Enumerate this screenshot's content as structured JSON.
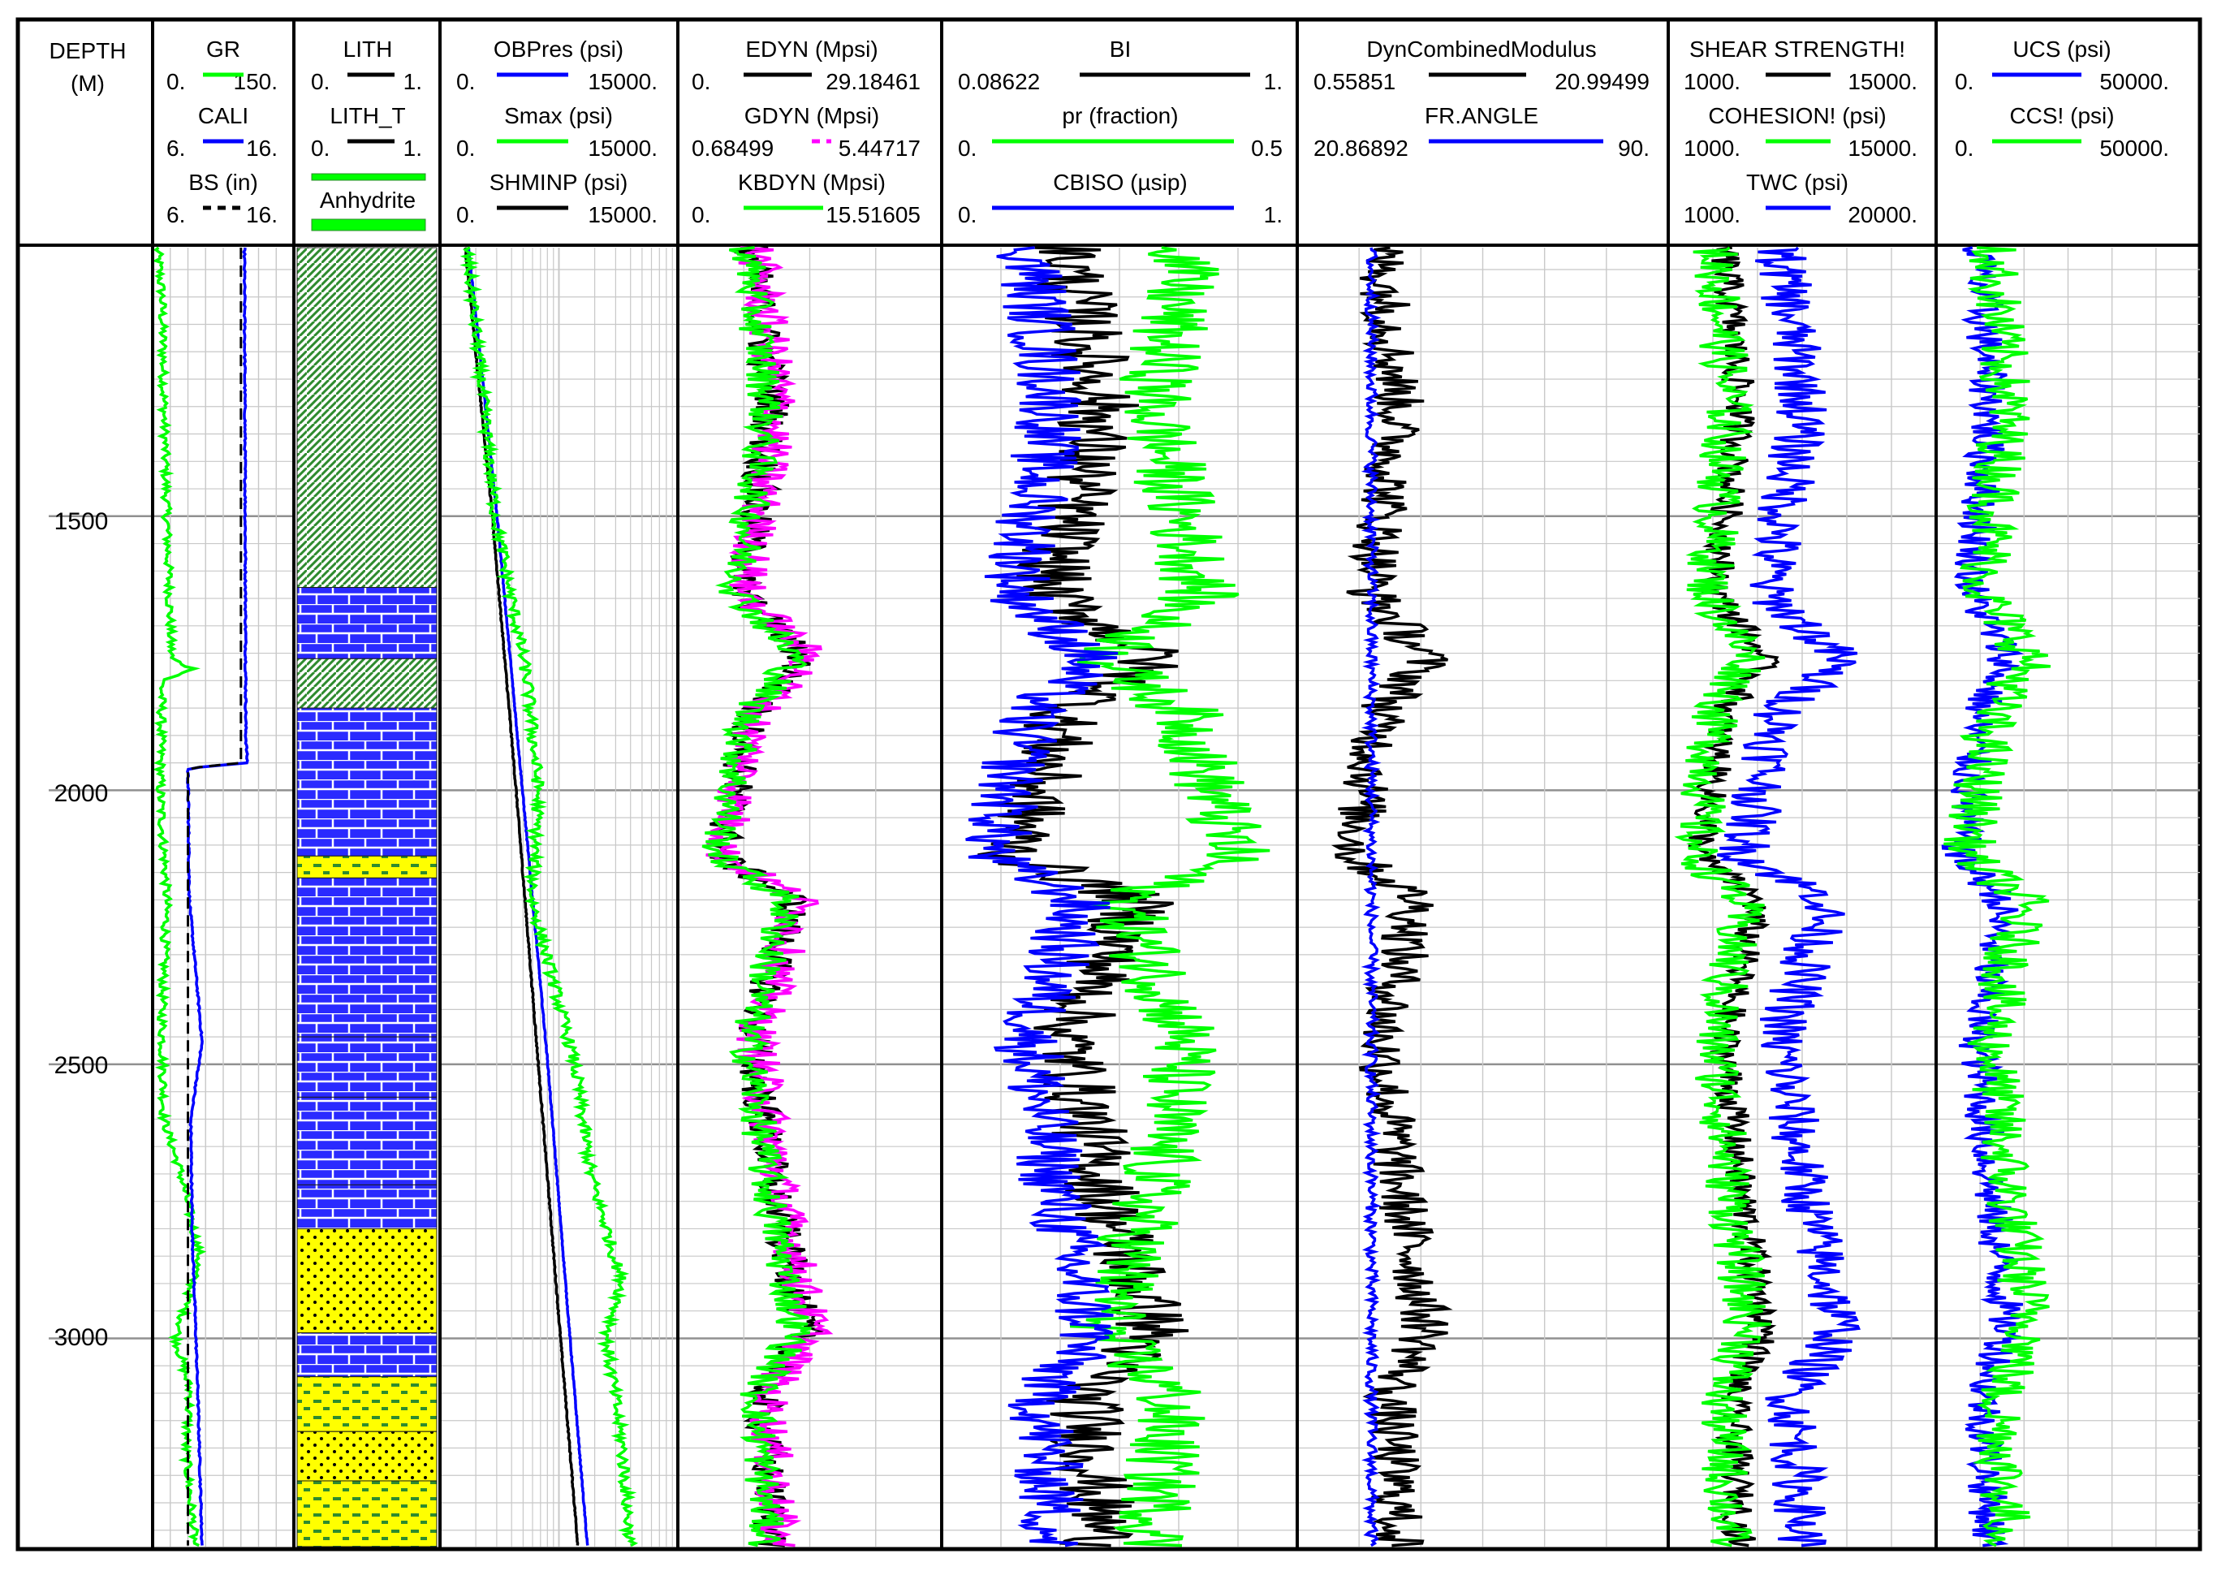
{
  "colors": {
    "green": "#00ff00",
    "blue": "#0000ff",
    "black": "#000000",
    "magenta": "#ff00ff",
    "grid": "#c8c8c8",
    "lith_green": "#2e8b2e",
    "lith_blue": "#2a2aff",
    "lith_yellow": "#ffff00"
  },
  "depth": {
    "title_line1": "DEPTH",
    "title_line2": "(M)",
    "top": 1010,
    "bottom": 3380,
    "labels": [
      "1500",
      "2000",
      "2500",
      "3000"
    ],
    "label_values": [
      1500,
      2000,
      2500,
      3000
    ]
  },
  "chart_data": {
    "type": "line",
    "title": "",
    "y_axis": "DEPTH (M)",
    "ylim": [
      3380,
      1010
    ],
    "tracks": [
      {
        "id": "gr_track",
        "curves": [
          {
            "name": "GR",
            "min": "0.",
            "max": "150.",
            "color": "green",
            "style": "solid"
          },
          {
            "name": "CALI",
            "min": "6.",
            "max": "16.",
            "color": "blue",
            "style": "solid"
          },
          {
            "name": "BS (in)",
            "min": "6.",
            "max": "16.",
            "color": "black",
            "style": "dashed"
          }
        ],
        "series": {
          "GR": [
            [
              1010,
              5
            ],
            [
              1100,
              10
            ],
            [
              1300,
              12
            ],
            [
              1500,
              15
            ],
            [
              1760,
              20
            ],
            [
              1780,
              45
            ],
            [
              1800,
              10
            ],
            [
              2000,
              8
            ],
            [
              2200,
              15
            ],
            [
              2400,
              10
            ],
            [
              2600,
              12
            ],
            [
              2700,
              30
            ],
            [
              2850,
              50
            ],
            [
              3000,
              25
            ],
            [
              3100,
              40
            ],
            [
              3200,
              35
            ],
            [
              3380,
              45
            ]
          ],
          "CALI": [
            [
              1010,
              12.5
            ],
            [
              1900,
              12.6
            ],
            [
              1950,
              12.7
            ],
            [
              1960,
              8.5
            ],
            [
              2200,
              8.6
            ],
            [
              2460,
              9.5
            ],
            [
              2600,
              8.7
            ],
            [
              2800,
              8.8
            ],
            [
              3100,
              9.2
            ],
            [
              3380,
              9.5
            ]
          ],
          "BS": [
            [
              1010,
              12.25
            ],
            [
              1950,
              12.25
            ],
            [
              1960,
              8.5
            ],
            [
              3380,
              8.5
            ]
          ]
        }
      },
      {
        "id": "lith_track",
        "curves": [
          {
            "name": "LITH",
            "min": "0.",
            "max": "1.",
            "color": "black",
            "style": "solid"
          },
          {
            "name": "LITH_T",
            "min": "0.",
            "max": "1.",
            "color": "black",
            "style": "solid"
          }
        ],
        "legend_item": "Anhydrite",
        "intervals": [
          {
            "top": 1010,
            "bottom": 1630,
            "lith": "shale"
          },
          {
            "top": 1630,
            "bottom": 1760,
            "lith": "limestone"
          },
          {
            "top": 1760,
            "bottom": 1850,
            "lith": "shale"
          },
          {
            "top": 1850,
            "bottom": 2120,
            "lith": "limestone"
          },
          {
            "top": 2120,
            "bottom": 2160,
            "lith": "marl"
          },
          {
            "top": 2160,
            "bottom": 2450,
            "lith": "limestone"
          },
          {
            "top": 2450,
            "bottom": 2560,
            "lith": "limestone"
          },
          {
            "top": 2560,
            "bottom": 2720,
            "lith": "limestone"
          },
          {
            "top": 2720,
            "bottom": 2800,
            "lith": "limestone"
          },
          {
            "top": 2800,
            "bottom": 2990,
            "lith": "sandstone"
          },
          {
            "top": 2990,
            "bottom": 3070,
            "lith": "limestone"
          },
          {
            "top": 3070,
            "bottom": 3170,
            "lith": "marl"
          },
          {
            "top": 3170,
            "bottom": 3260,
            "lith": "sandstone"
          },
          {
            "top": 3260,
            "bottom": 3380,
            "lith": "marl"
          }
        ]
      },
      {
        "id": "stress_track",
        "curves": [
          {
            "name": "OBPres (psi)",
            "min": "0.",
            "max": "15000.",
            "color": "blue",
            "style": "solid"
          },
          {
            "name": "Smax (psi)",
            "min": "0.",
            "max": "15000.",
            "color": "green",
            "style": "solid"
          },
          {
            "name": "SHMINP (psi)",
            "min": "0.",
            "max": "15000.",
            "color": "black",
            "style": "solid"
          }
        ],
        "series": {
          "OBPres": [
            [
              1010,
              1800
            ],
            [
              1500,
              3600
            ],
            [
              2000,
              5200
            ],
            [
              2500,
              6800
            ],
            [
              3000,
              8200
            ],
            [
              3380,
              9300
            ]
          ],
          "Smax": [
            [
              1010,
              1700
            ],
            [
              1500,
              3500
            ],
            [
              1800,
              5500
            ],
            [
              2000,
              6200
            ],
            [
              2200,
              5800
            ],
            [
              2500,
              8500
            ],
            [
              2700,
              9500
            ],
            [
              2900,
              11500
            ],
            [
              3000,
              10500
            ],
            [
              3200,
              11500
            ],
            [
              3380,
              12000
            ]
          ],
          "SHMINP": [
            [
              1010,
              1600
            ],
            [
              1500,
              3300
            ],
            [
              2000,
              4800
            ],
            [
              2500,
              6200
            ],
            [
              3000,
              7600
            ],
            [
              3380,
              8700
            ]
          ]
        }
      },
      {
        "id": "modulus_track",
        "curves": [
          {
            "name": "EDYN (Mpsi)",
            "min": "0.",
            "max": "29.18461",
            "color": "black",
            "style": "solid"
          },
          {
            "name": "GDYN (Mpsi)",
            "min": "0.68499",
            "max": "5.44717",
            "color": "magenta",
            "style": "dashed"
          },
          {
            "name": "KBDYN (Mpsi)",
            "min": "0.",
            "max": "15.51605",
            "color": "green",
            "style": "solid"
          }
        ]
      },
      {
        "id": "bi_track",
        "curves": [
          {
            "name": "BI",
            "min": "0.08622",
            "max": "1.",
            "color": "black",
            "style": "solid"
          },
          {
            "name": "pr (fraction)",
            "min": "0.",
            "max": "0.5",
            "color": "green",
            "style": "solid"
          },
          {
            "name": "CBISO (µsip)",
            "min": "0.",
            "max": "1.",
            "color": "blue",
            "style": "solid"
          }
        ]
      },
      {
        "id": "dyn_track",
        "curves": [
          {
            "name": "DynCombinedModulus",
            "min": "0.55851",
            "max": "20.99499",
            "color": "black",
            "style": "solid"
          },
          {
            "name": "FR.ANGLE",
            "min": "20.86892",
            "max": "90.",
            "color": "blue",
            "style": "solid"
          }
        ]
      },
      {
        "id": "shear_track",
        "curves": [
          {
            "name": "SHEAR STRENGTH!",
            "min": "1000.",
            "max": "15000.",
            "color": "black",
            "style": "solid"
          },
          {
            "name": "COHESION! (psi)",
            "min": "1000.",
            "max": "15000.",
            "color": "green",
            "style": "solid"
          },
          {
            "name": "TWC (psi)",
            "min": "1000.",
            "max": "20000.",
            "color": "blue",
            "style": "solid"
          }
        ]
      },
      {
        "id": "ucs_track",
        "curves": [
          {
            "name": "UCS (psi)",
            "min": "0.",
            "max": "50000.",
            "color": "blue",
            "style": "solid"
          },
          {
            "name": "CCS! (psi)",
            "min": "0.",
            "max": "50000.",
            "color": "green",
            "style": "solid"
          }
        ]
      }
    ]
  }
}
